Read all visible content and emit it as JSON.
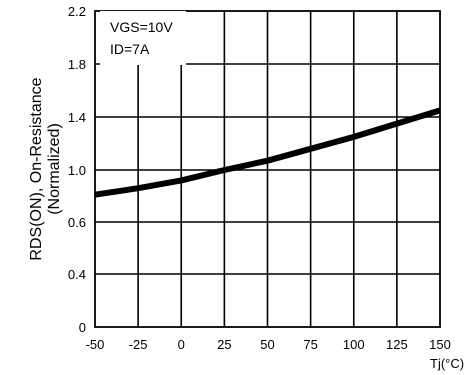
{
  "chart_data": {
    "type": "line",
    "x_tick_labels": [
      "-50",
      "-25",
      "0",
      "25",
      "50",
      "75",
      "100",
      "125",
      "150"
    ],
    "y_tick_labels": [
      "0",
      "0.4",
      "0.6",
      "1.0",
      "1.4",
      "1.8",
      "2.2"
    ],
    "x_unit_label": "Tj(°C)",
    "ylabel": "RDS(ON), On-Resistance",
    "ylabel2": "(Normalized)",
    "annotations": [
      "VGS=10V",
      "ID=7A"
    ],
    "grid": true,
    "series": [
      {
        "x": [
          -50,
          -25,
          0,
          25,
          50,
          75,
          100,
          125,
          150
        ],
        "y": [
          0.81,
          0.86,
          0.92,
          1.0,
          1.07,
          1.16,
          1.25,
          1.35,
          1.45
        ]
      }
    ]
  }
}
